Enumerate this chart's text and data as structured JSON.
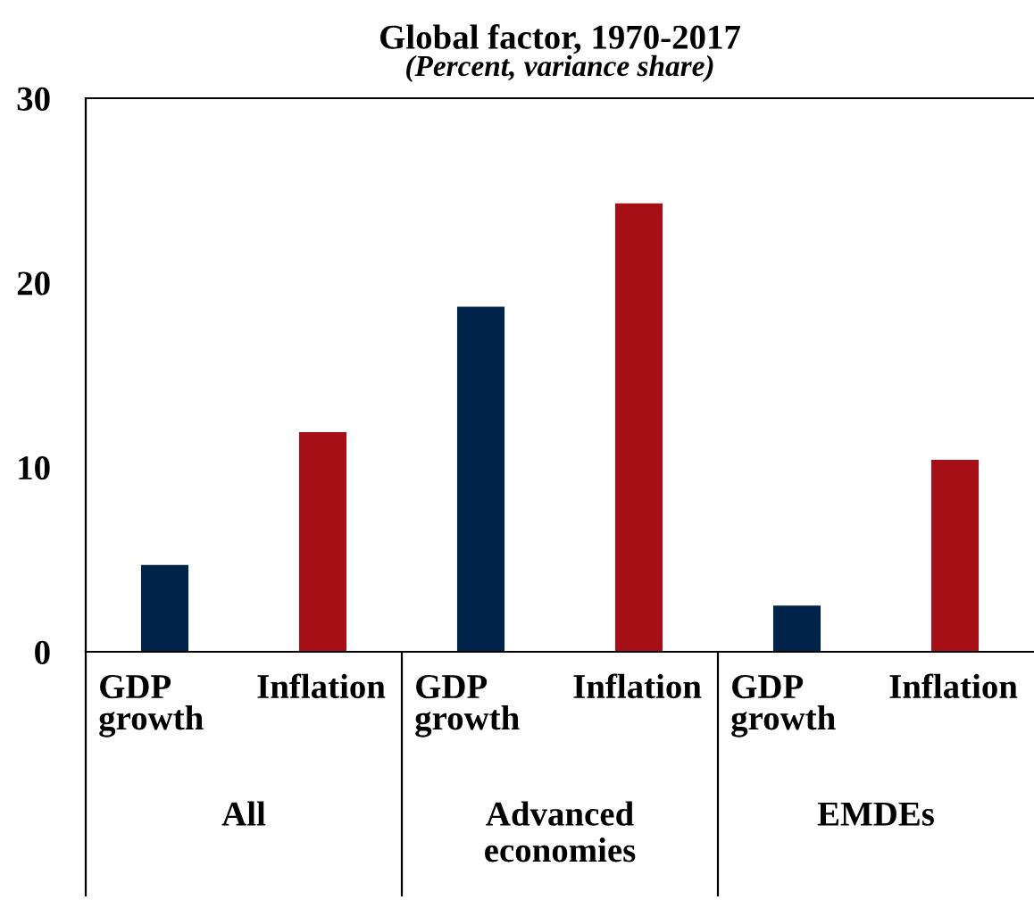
{
  "chart_data": {
    "type": "bar",
    "title": "Global factor, 1970-2017",
    "subtitle": "(Percent, variance share)",
    "categories": [
      "GDP growth",
      "Inflation",
      "GDP growth",
      "Inflation",
      "GDP growth",
      "Inflation"
    ],
    "values": [
      4.7,
      11.9,
      18.7,
      24.3,
      2.5,
      10.4
    ],
    "colors": [
      "#00234a",
      "#a50f15",
      "#00234a",
      "#a50f15",
      "#00234a",
      "#a50f15"
    ],
    "ylim": [
      0,
      30
    ],
    "yticks": [
      0,
      10,
      20,
      30
    ],
    "grid": false,
    "legend": false,
    "annotations": [
      "All",
      "Advanced economies",
      "EMDEs"
    ]
  }
}
